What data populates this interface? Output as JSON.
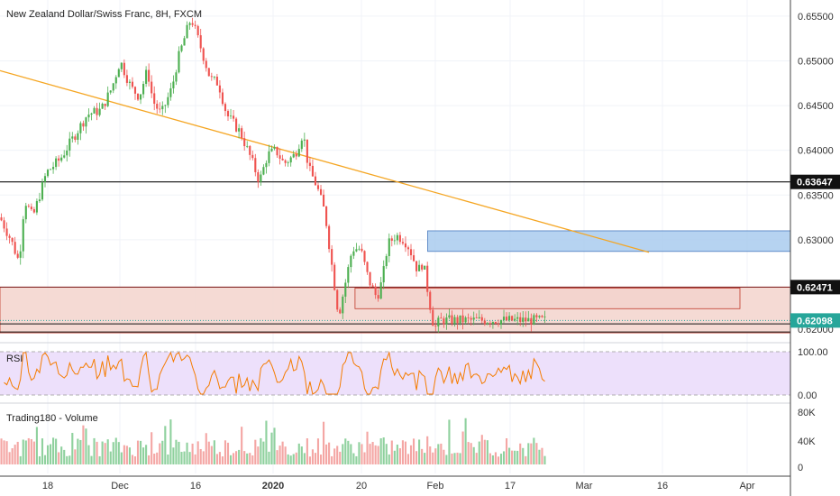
{
  "header": {
    "title": "New Zealand Dollar/Swiss Franc, 8H, FXCM"
  },
  "colors": {
    "up": "#4caf50",
    "down": "#ef5350",
    "trendline": "#f5a623",
    "rsi_line": "#f57c00",
    "rsi_band": "#ede0fb",
    "blue_zone": "#a9cbef",
    "red_zone": "#f3d3cd",
    "last_price_badge": "#26a69a",
    "level_badge": "#111111"
  },
  "price_axis": {
    "ticks": [
      "0.65500",
      "0.65000",
      "0.64500",
      "0.64000",
      "0.63500",
      "0.63000",
      "0.62000"
    ],
    "tick_values": [
      0.655,
      0.65,
      0.645,
      0.64,
      0.635,
      0.63,
      0.62
    ],
    "range": [
      0.6187,
      0.6568
    ],
    "badges": {
      "resistance": "0.63647",
      "support": "0.62471",
      "last": "0.62098"
    }
  },
  "rsi_pane": {
    "title": "RSI",
    "ticks": [
      "100.00",
      "0.00"
    ]
  },
  "volume_pane": {
    "title": "Trading180 - Volume",
    "ticks": [
      "80K",
      "40K",
      "0"
    ]
  },
  "time_axis": {
    "labels": [
      {
        "text": "18",
        "bold": false
      },
      {
        "text": "Dec",
        "bold": false
      },
      {
        "text": "16",
        "bold": false
      },
      {
        "text": "2020",
        "bold": true
      },
      {
        "text": "20",
        "bold": false
      },
      {
        "text": "Feb",
        "bold": false
      },
      {
        "text": "17",
        "bold": false
      },
      {
        "text": "Mar",
        "bold": false
      },
      {
        "text": "16",
        "bold": false
      },
      {
        "text": "Apr",
        "bold": false
      }
    ]
  },
  "chart_data": {
    "type": "candlestick",
    "timeframe": "8H",
    "price_path": [
      {
        "t": 0.0,
        "p": 0.6325
      },
      {
        "t": 0.02,
        "p": 0.63
      },
      {
        "t": 0.035,
        "p": 0.6275
      },
      {
        "t": 0.045,
        "p": 0.6345
      },
      {
        "t": 0.06,
        "p": 0.6325
      },
      {
        "t": 0.085,
        "p": 0.6375
      },
      {
        "t": 0.11,
        "p": 0.639
      },
      {
        "t": 0.135,
        "p": 0.6415
      },
      {
        "t": 0.16,
        "p": 0.644
      },
      {
        "t": 0.185,
        "p": 0.6445
      },
      {
        "t": 0.205,
        "p": 0.647
      },
      {
        "t": 0.22,
        "p": 0.65
      },
      {
        "t": 0.24,
        "p": 0.647
      },
      {
        "t": 0.255,
        "p": 0.646
      },
      {
        "t": 0.27,
        "p": 0.649
      },
      {
        "t": 0.28,
        "p": 0.6455
      },
      {
        "t": 0.295,
        "p": 0.644
      },
      {
        "t": 0.315,
        "p": 0.647
      },
      {
        "t": 0.325,
        "p": 0.65
      },
      {
        "t": 0.34,
        "p": 0.653
      },
      {
        "t": 0.35,
        "p": 0.6548
      },
      {
        "t": 0.365,
        "p": 0.652
      },
      {
        "t": 0.375,
        "p": 0.65
      },
      {
        "t": 0.385,
        "p": 0.648
      },
      {
        "t": 0.4,
        "p": 0.6475
      },
      {
        "t": 0.415,
        "p": 0.644
      },
      {
        "t": 0.44,
        "p": 0.642
      },
      {
        "t": 0.46,
        "p": 0.639
      },
      {
        "t": 0.475,
        "p": 0.6365
      },
      {
        "t": 0.49,
        "p": 0.6395
      },
      {
        "t": 0.505,
        "p": 0.64
      },
      {
        "t": 0.52,
        "p": 0.6385
      },
      {
        "t": 0.54,
        "p": 0.6395
      },
      {
        "t": 0.555,
        "p": 0.642
      },
      {
        "t": 0.565,
        "p": 0.638
      },
      {
        "t": 0.58,
        "p": 0.636
      },
      {
        "t": 0.595,
        "p": 0.633
      },
      {
        "t": 0.61,
        "p": 0.626
      },
      {
        "t": 0.62,
        "p": 0.6215
      },
      {
        "t": 0.63,
        "p": 0.6245
      },
      {
        "t": 0.645,
        "p": 0.629
      },
      {
        "t": 0.66,
        "p": 0.629
      },
      {
        "t": 0.675,
        "p": 0.6255
      },
      {
        "t": 0.69,
        "p": 0.6235
      },
      {
        "t": 0.7,
        "p": 0.6255
      },
      {
        "t": 0.71,
        "p": 0.6295
      },
      {
        "t": 0.725,
        "p": 0.6305
      },
      {
        "t": 0.74,
        "p": 0.63
      },
      {
        "t": 0.75,
        "p": 0.629
      },
      {
        "t": 0.765,
        "p": 0.6265
      },
      {
        "t": 0.775,
        "p": 0.6275
      },
      {
        "t": 0.785,
        "p": 0.6235
      },
      {
        "t": 0.795,
        "p": 0.62
      },
      {
        "t": 0.805,
        "p": 0.621
      }
    ],
    "trendline": {
      "from": {
        "t": 0.0,
        "p": 0.6489
      },
      "to": {
        "t": 0.975,
        "p": 0.6286
      }
    },
    "horizontal_levels": [
      0.63647,
      0.62471,
      0.6206,
      0.6197
    ],
    "zones": [
      {
        "name": "supply",
        "p_top": 0.631,
        "p_bot": 0.6287,
        "t_start": 0.783,
        "t_end": 1.0
      },
      {
        "name": "demand-wide",
        "p_top": 0.62471,
        "p_bot": 0.6196,
        "t_start": 0.0,
        "t_end": 1.0
      },
      {
        "name": "demand-inner",
        "p_top": 0.6246,
        "p_bot": 0.6223,
        "t_start": 0.65,
        "t_end": 0.935
      }
    ],
    "rsi": {
      "range": [
        0,
        100
      ],
      "upper_band": 100,
      "lower_band": 0
    },
    "volume": {
      "range": [
        0,
        80000
      ]
    }
  }
}
